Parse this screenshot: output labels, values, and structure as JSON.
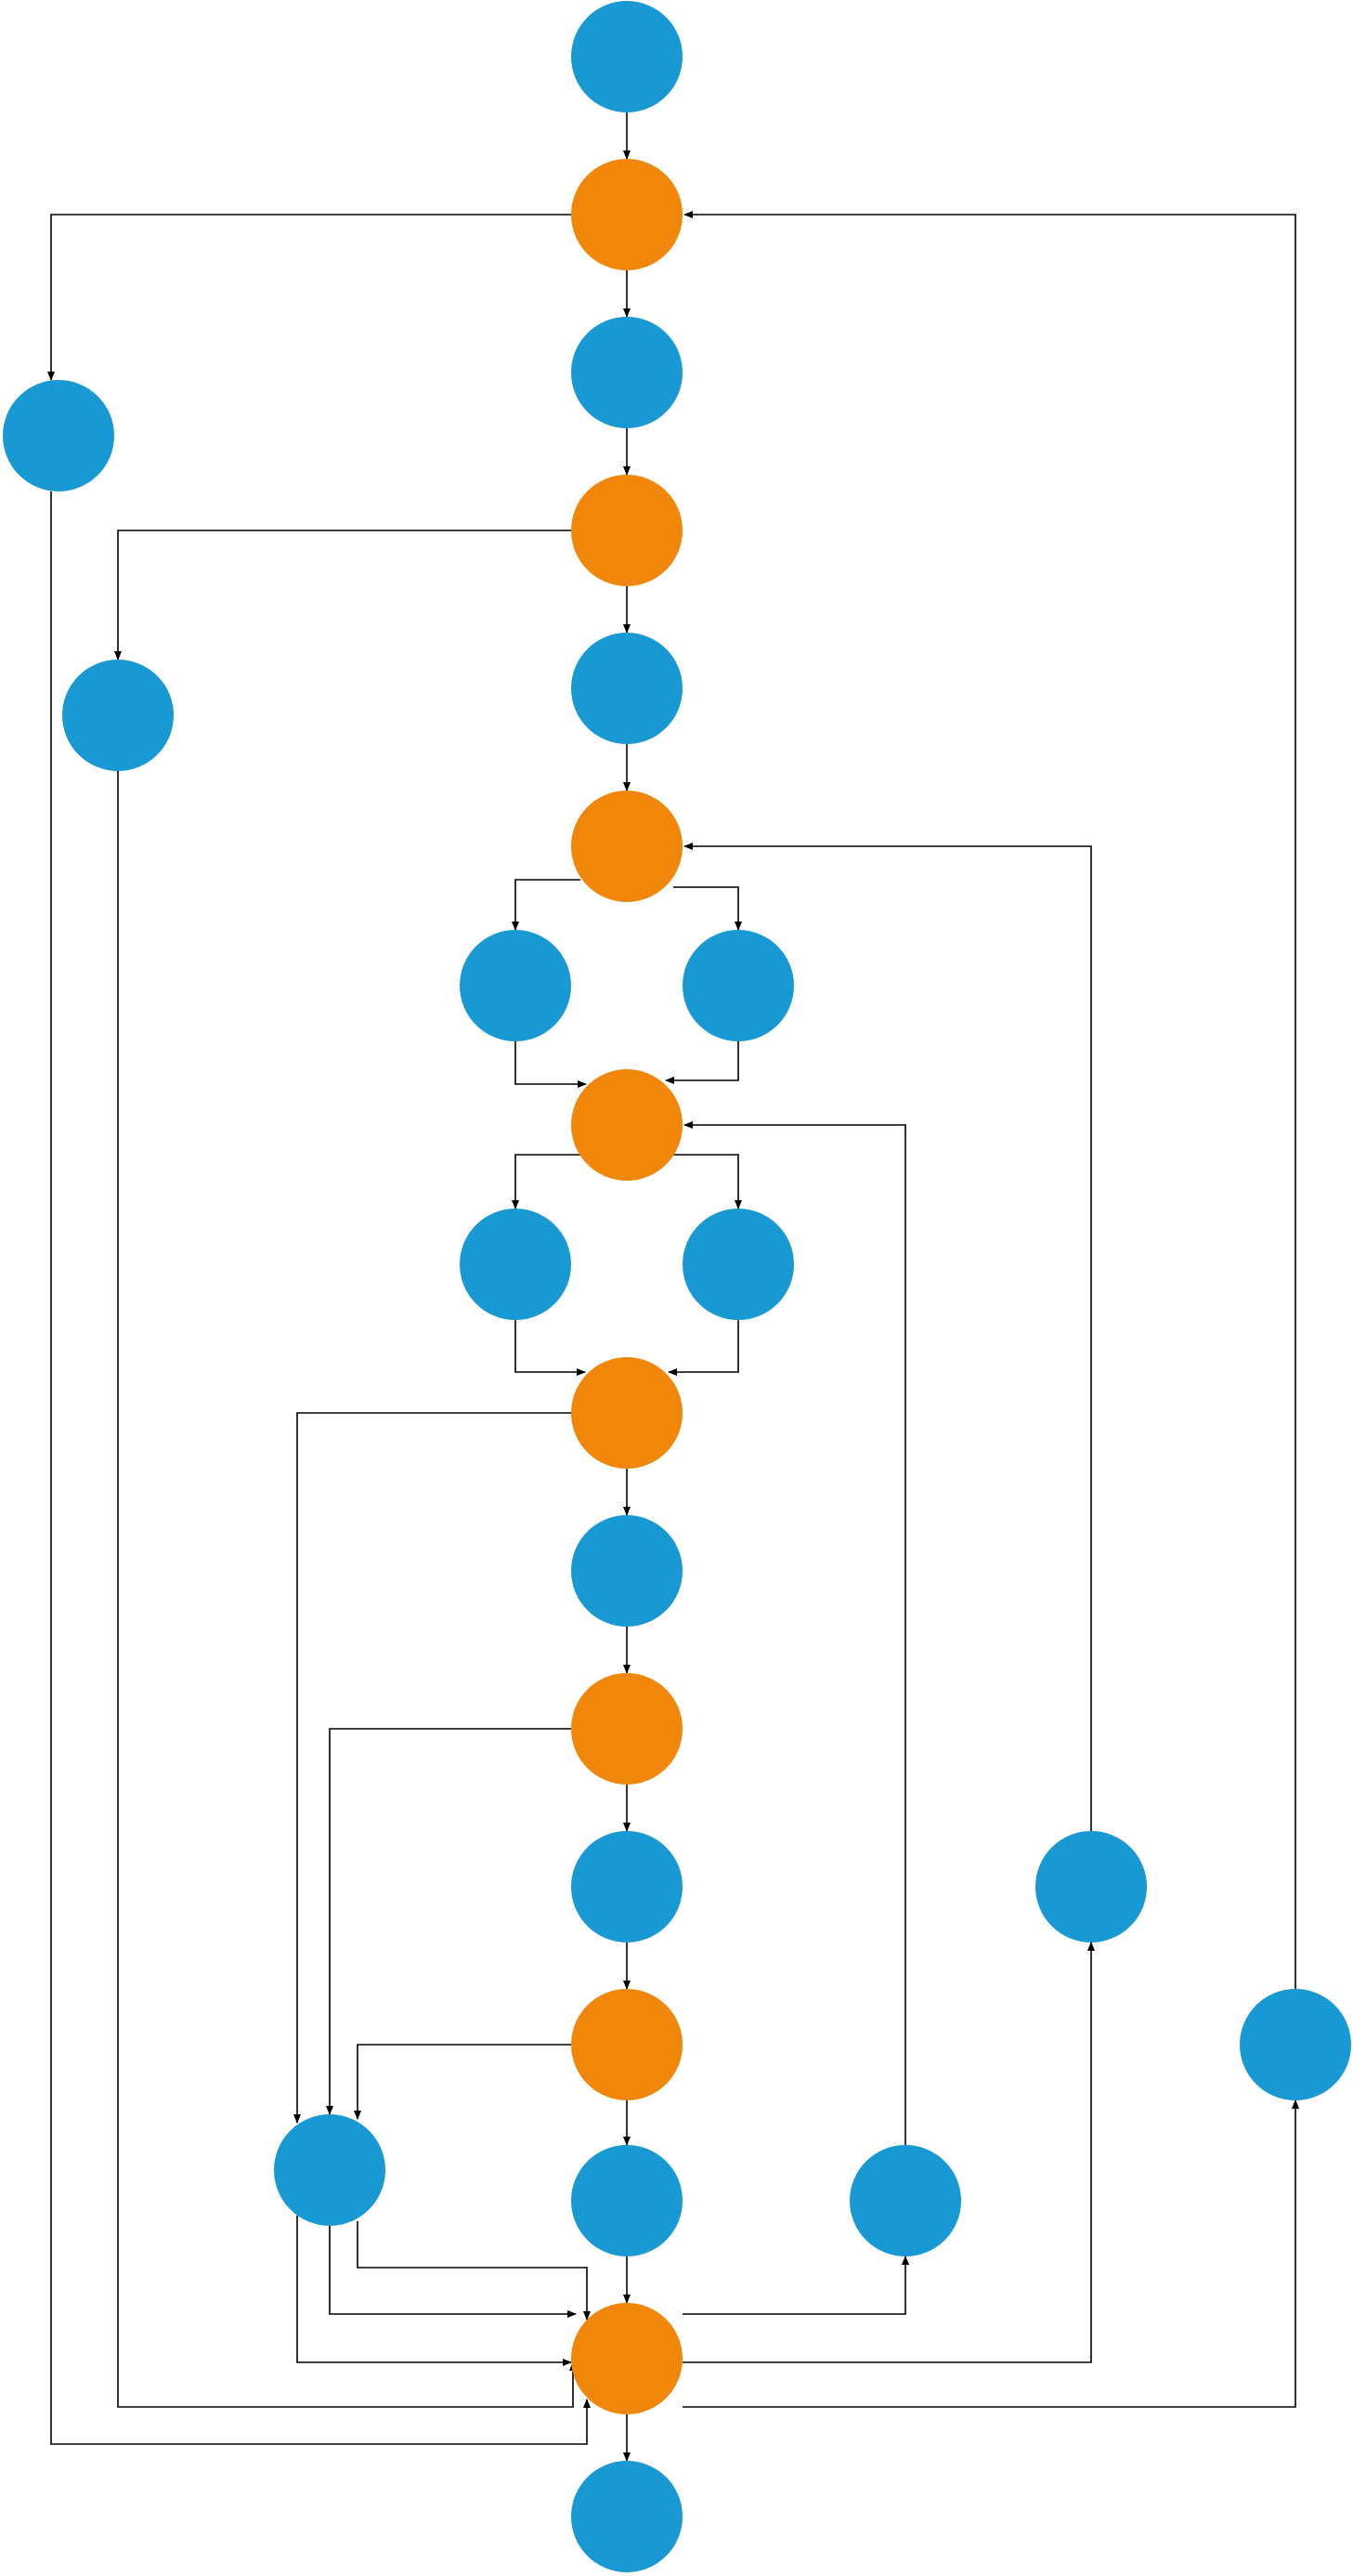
{
  "colors": {
    "process": "#1899D4",
    "decision": "#F0870A",
    "edge": "#000000",
    "background": "#FFFFFF"
  },
  "nodes": [
    {
      "id": "n1",
      "kind": "process"
    },
    {
      "id": "d1",
      "kind": "decision"
    },
    {
      "id": "n2",
      "kind": "process"
    },
    {
      "id": "l1",
      "kind": "process"
    },
    {
      "id": "d2",
      "kind": "decision"
    },
    {
      "id": "l2",
      "kind": "process"
    },
    {
      "id": "n3",
      "kind": "process"
    },
    {
      "id": "d3",
      "kind": "decision"
    },
    {
      "id": "n4a",
      "kind": "process"
    },
    {
      "id": "n4b",
      "kind": "process"
    },
    {
      "id": "d4",
      "kind": "decision"
    },
    {
      "id": "n5a",
      "kind": "process"
    },
    {
      "id": "n5b",
      "kind": "process"
    },
    {
      "id": "d5",
      "kind": "decision"
    },
    {
      "id": "n6",
      "kind": "process"
    },
    {
      "id": "d6",
      "kind": "decision"
    },
    {
      "id": "n7",
      "kind": "process"
    },
    {
      "id": "r1",
      "kind": "process"
    },
    {
      "id": "d7",
      "kind": "decision"
    },
    {
      "id": "r2",
      "kind": "process"
    },
    {
      "id": "lc",
      "kind": "process"
    },
    {
      "id": "n8",
      "kind": "process"
    },
    {
      "id": "r3",
      "kind": "process"
    },
    {
      "id": "d8",
      "kind": "decision"
    },
    {
      "id": "n9",
      "kind": "process"
    }
  ],
  "edges": [
    {
      "from": "n1",
      "to": "d1"
    },
    {
      "from": "d1",
      "to": "n2"
    },
    {
      "from": "d1",
      "to": "l1"
    },
    {
      "from": "n2",
      "to": "d2"
    },
    {
      "from": "d2",
      "to": "n3"
    },
    {
      "from": "d2",
      "to": "l2"
    },
    {
      "from": "n3",
      "to": "d3"
    },
    {
      "from": "d3",
      "to": "n4a"
    },
    {
      "from": "d3",
      "to": "n4b"
    },
    {
      "from": "n4a",
      "to": "d4"
    },
    {
      "from": "n4b",
      "to": "d4"
    },
    {
      "from": "d4",
      "to": "n5a"
    },
    {
      "from": "d4",
      "to": "n5b"
    },
    {
      "from": "n5a",
      "to": "d5"
    },
    {
      "from": "n5b",
      "to": "d5"
    },
    {
      "from": "d5",
      "to": "n6"
    },
    {
      "from": "d5",
      "to": "lc"
    },
    {
      "from": "n6",
      "to": "d6"
    },
    {
      "from": "d6",
      "to": "n7"
    },
    {
      "from": "d6",
      "to": "lc"
    },
    {
      "from": "n7",
      "to": "d7"
    },
    {
      "from": "d7",
      "to": "n8"
    },
    {
      "from": "d7",
      "to": "lc"
    },
    {
      "from": "n8",
      "to": "d8"
    },
    {
      "from": "lc",
      "to": "d8"
    },
    {
      "from": "l1",
      "to": "d8"
    },
    {
      "from": "l2",
      "to": "d8"
    },
    {
      "from": "d8",
      "to": "n9"
    },
    {
      "from": "d8",
      "to": "r3"
    },
    {
      "from": "d8",
      "to": "r1"
    },
    {
      "from": "d8",
      "to": "r2"
    },
    {
      "from": "r3",
      "to": "d4"
    },
    {
      "from": "r1",
      "to": "d3"
    },
    {
      "from": "r2",
      "to": "d1"
    }
  ]
}
